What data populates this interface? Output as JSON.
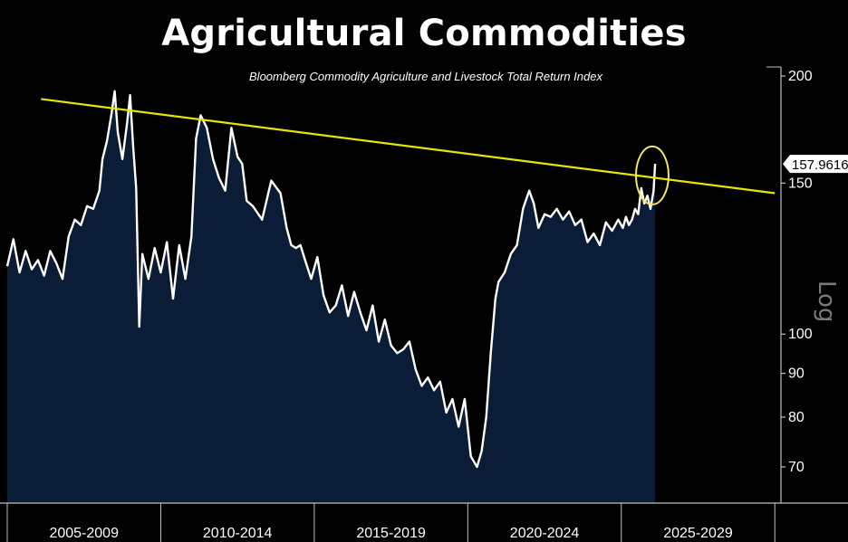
{
  "title": "Agricultural Commodities",
  "subtitle": "Bloomberg Commodity Agriculture and Livestock Total Return Index",
  "axis_scale_label": "Log",
  "last_value_label": "157.9616",
  "colors": {
    "background": "#000000",
    "area_fill": "#0b1c36",
    "series_line": "#ffffff",
    "trendline": "#e6e600",
    "highlight_circle": "#f2e85a",
    "axis": "#bfbfbf"
  },
  "chart_data": {
    "type": "area",
    "title": "Agricultural Commodities",
    "subtitle": "Bloomberg Commodity Agriculture and Livestock Total Return Index",
    "y_scale": "log",
    "ylim": [
      63,
      205
    ],
    "xlim": [
      2005.0,
      2030.2
    ],
    "y_ticks": [
      70,
      80,
      90,
      100,
      150,
      200
    ],
    "x_tick_labels": [
      {
        "label": "2005-2009",
        "center": 2007.5
      },
      {
        "label": "2010-2014",
        "center": 2012.5
      },
      {
        "label": "2015-2019",
        "center": 2017.5
      },
      {
        "label": "2020-2024",
        "center": 2022.5
      },
      {
        "label": "2025-2029",
        "center": 2027.5
      }
    ],
    "x_separators": [
      2005.0,
      2010.0,
      2015.0,
      2020.0,
      2025.0,
      2030.0
    ],
    "grid": false,
    "last_value": 157.9616,
    "series": [
      {
        "x": [
          2005.0,
          2005.2,
          2005.4,
          2005.6,
          2005.8,
          2006.0,
          2006.2,
          2006.4,
          2006.6,
          2006.8,
          2007.0,
          2007.2,
          2007.4,
          2007.6,
          2007.8,
          2008.0,
          2008.1,
          2008.25,
          2008.4,
          2008.5,
          2008.6,
          2008.75,
          2008.9,
          2009.0,
          2009.1,
          2009.2,
          2009.3,
          2009.4,
          2009.6,
          2009.8,
          2010.0,
          2010.2,
          2010.4,
          2010.6,
          2010.8,
          2011.0,
          2011.15,
          2011.3,
          2011.5,
          2011.7,
          2011.9,
          2012.1,
          2012.3,
          2012.5,
          2012.65,
          2012.8,
          2013.0,
          2013.3,
          2013.6,
          2013.9,
          2014.1,
          2014.25,
          2014.4,
          2014.55,
          2014.7,
          2014.9,
          2015.1,
          2015.3,
          2015.5,
          2015.7,
          2015.9,
          2016.1,
          2016.3,
          2016.5,
          2016.7,
          2016.9,
          2017.1,
          2017.3,
          2017.5,
          2017.7,
          2017.9,
          2018.1,
          2018.3,
          2018.5,
          2018.7,
          2018.9,
          2019.1,
          2019.3,
          2019.5,
          2019.7,
          2019.9,
          2020.1,
          2020.3,
          2020.45,
          2020.6,
          2020.75,
          2020.9,
          2021.0,
          2021.2,
          2021.4,
          2021.6,
          2021.8,
          2022.0,
          2022.15,
          2022.3,
          2022.5,
          2022.7,
          2022.9,
          2023.1,
          2023.3,
          2023.5,
          2023.7,
          2023.9,
          2024.1,
          2024.3,
          2024.5,
          2024.7,
          2024.9,
          2025.05,
          2025.15,
          2025.25,
          2025.35,
          2025.45,
          2025.55,
          2025.65,
          2025.75,
          2025.85,
          2025.95,
          2026.05,
          2026.1
        ],
        "values": [
          120,
          129,
          118,
          125,
          119,
          122,
          117,
          125,
          121,
          116,
          130,
          136,
          134,
          141,
          140,
          147,
          160,
          168,
          181,
          192,
          172,
          160,
          176,
          190,
          166,
          148,
          102,
          124,
          116,
          126,
          118,
          128,
          110,
          127,
          116,
          130,
          169,
          180,
          174,
          160,
          152,
          147,
          174,
          161,
          158,
          143,
          141,
          136,
          151,
          146,
          133,
          127,
          126,
          127,
          122,
          116,
          123,
          111,
          106,
          108,
          114,
          105,
          112,
          106,
          101,
          108,
          98,
          104,
          97,
          95,
          96,
          98,
          91,
          87,
          89,
          86,
          88,
          81,
          84,
          78,
          84,
          72,
          70,
          73,
          80,
          95,
          110,
          115,
          118,
          124,
          127,
          140,
          147,
          142,
          133,
          138,
          137,
          140,
          136,
          139,
          134,
          136,
          128,
          131,
          127,
          135,
          132,
          136,
          133,
          137,
          134,
          136,
          140,
          138,
          148,
          142,
          145,
          140,
          147,
          157.96
        ]
      }
    ],
    "trendline": {
      "x": [
        2006.1,
        2030.0
      ],
      "values": [
        188,
        146
      ]
    },
    "highlight": {
      "x": 2025.95,
      "value": 152
    }
  }
}
